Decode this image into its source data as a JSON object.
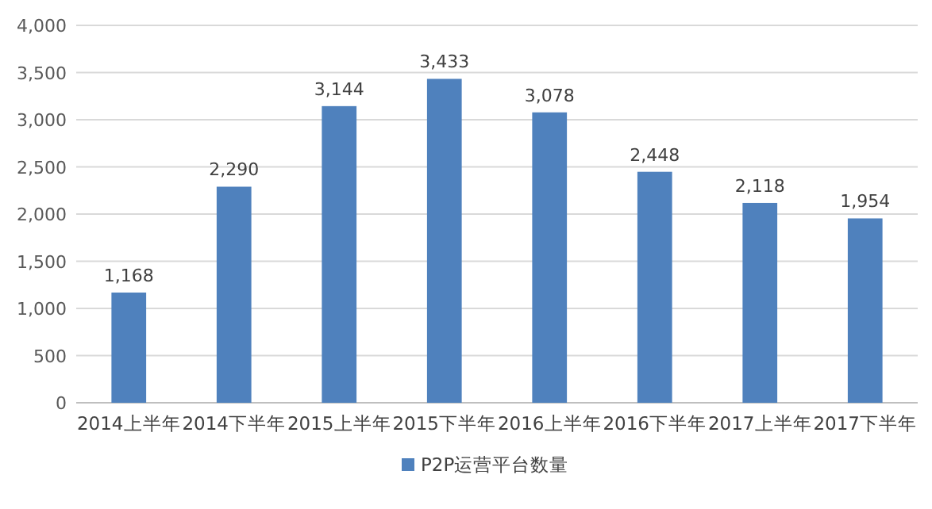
{
  "chart_data": {
    "type": "bar",
    "categories": [
      "2014上半年",
      "2014下半年",
      "2015上半年",
      "2015下半年",
      "2016上半年",
      "2016下半年",
      "2017上半年",
      "2017下半年"
    ],
    "series": [
      {
        "name": "P2P运营平台数量",
        "color": "#4f81bd",
        "values": [
          1168,
          2290,
          3144,
          3433,
          3078,
          2448,
          2118,
          1954
        ]
      }
    ],
    "ylim": [
      0,
      4000
    ],
    "yticks": [
      {
        "value": 0,
        "label": "0"
      },
      {
        "value": 500,
        "label": "500"
      },
      {
        "value": 1000,
        "label": "1,000"
      },
      {
        "value": 1500,
        "label": "1,500"
      },
      {
        "value": 2000,
        "label": "2,000"
      },
      {
        "value": 2500,
        "label": "2,500"
      },
      {
        "value": 3000,
        "label": "3,000"
      },
      {
        "value": 3500,
        "label": "3,500"
      },
      {
        "value": 4000,
        "label": "4,000"
      }
    ],
    "value_labels": [
      "1,168",
      "2,290",
      "3,144",
      "3,433",
      "3,078",
      "2,448",
      "2,118",
      "1,954"
    ],
    "grid": "y",
    "legend": "bottom"
  }
}
